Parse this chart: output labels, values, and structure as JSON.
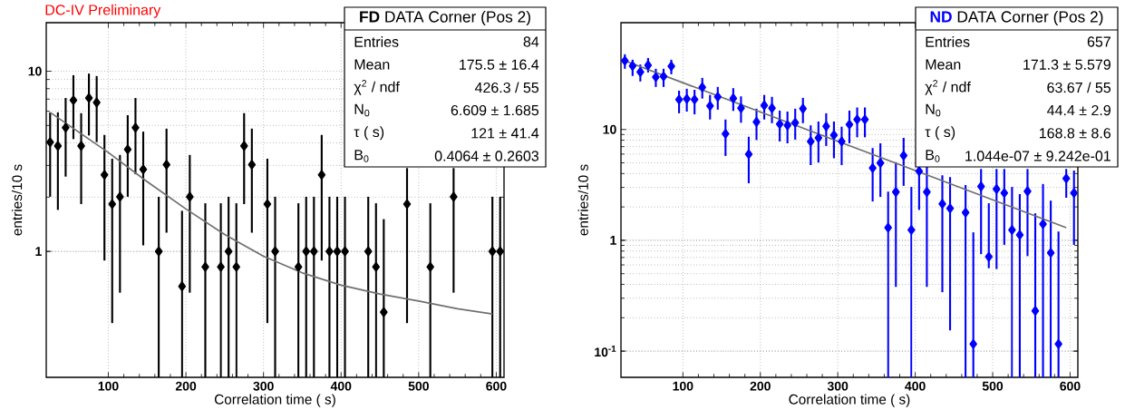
{
  "chart_data": [
    {
      "type": "scatter",
      "title": "DC-IV Preliminary",
      "xlabel": "Correlation time  (  s)",
      "ylabel": "entries/10  s",
      "x": [
        25,
        35,
        45,
        55,
        65,
        75,
        85,
        95,
        105,
        115,
        125,
        135,
        145,
        155,
        165,
        175,
        185,
        195,
        205,
        215,
        225,
        235,
        245,
        255,
        265,
        275,
        285,
        295,
        305,
        315,
        325,
        335,
        345,
        355,
        365,
        375,
        385,
        395,
        405,
        415,
        425,
        435,
        445,
        455,
        465,
        475,
        485,
        495,
        505,
        515,
        525,
        535,
        545,
        555,
        565,
        575,
        585,
        595,
        605
      ],
      "series": [
        {
          "color": "#000000",
          "values": [
            4.04,
            3.85,
            4.86,
            6.9,
            3.85,
            7.1,
            6.7,
            2.66,
            1.83,
            2.01,
            3.68,
            4.86,
            2.85,
            null,
            1,
            3.03,
            null,
            0.64,
            2.01,
            null,
            0.82,
            null,
            0.82,
            1,
            0.82,
            3.85,
            3.03,
            null,
            1.83,
            1,
            null,
            null,
            0.82,
            1,
            1,
            2.66,
            1,
            1,
            1,
            null,
            null,
            1,
            0.82,
            0.46,
            null,
            null,
            1.83,
            null,
            null,
            0.82,
            null,
            null,
            2.01,
            null,
            null,
            null,
            null,
            1,
            1
          ],
          "errors": [
            [
              2.01,
              5.91
            ],
            [
              1.7,
              5.91
            ],
            [
              2.6,
              7.1
            ],
            [
              4.2,
              9.5
            ],
            [
              1.83,
              5.85
            ],
            [
              4.4,
              9.7
            ],
            [
              4.04,
              9.4
            ],
            [
              0.89,
              4.43
            ],
            [
              0.4,
              3.27
            ],
            [
              0.59,
              3.43
            ],
            [
              2.01,
              5.7
            ],
            [
              2.68,
              7.1
            ],
            [
              1.08,
              4.62
            ],
            null,
            [
              0.2,
              2.01
            ],
            [
              1.27,
              4.8
            ],
            null,
            [
              0.2,
              1.68
            ],
            [
              0.59,
              3.43
            ],
            null,
            [
              0.2,
              1.85
            ],
            null,
            [
              0.2,
              1.85
            ],
            [
              0.2,
              2.01
            ],
            [
              0.2,
              1.85
            ],
            [
              1.83,
              5.85
            ],
            [
              1.27,
              4.8
            ],
            null,
            [
              0.4,
              3.27
            ],
            [
              0.2,
              2.01
            ],
            null,
            null,
            [
              0.2,
              1.85
            ],
            [
              0.2,
              2.01
            ],
            [
              0.2,
              2.01
            ],
            [
              0.89,
              4.43
            ],
            [
              0.2,
              2.01
            ],
            [
              0.2,
              2.01
            ],
            [
              0.2,
              2.01
            ],
            null,
            null,
            [
              0.2,
              2.01
            ],
            [
              0.2,
              1.85
            ],
            [
              0.2,
              1.51
            ],
            null,
            null,
            [
              0.4,
              2.9
            ],
            null,
            null,
            [
              0.2,
              1.85
            ],
            null,
            null,
            [
              0.59,
              2.9
            ],
            null,
            null,
            null,
            null,
            [
              0.2,
              2.01
            ],
            [
              0.2,
              2.01
            ]
          ]
        },
        {
          "type": "line",
          "color": "#707070",
          "marker": "none",
          "x": [
            25,
            100,
            150,
            200,
            250,
            300,
            350,
            400,
            450,
            500,
            550,
            595
          ],
          "values": [
            5.91,
            3.54,
            2.44,
            1.72,
            1.24,
            0.94,
            0.76,
            0.65,
            0.58,
            0.53,
            0.48,
            0.45
          ]
        }
      ],
      "xlim": [
        20,
        610
      ],
      "ylim": [
        0.2,
        18.6
      ],
      "xticks": [
        100,
        200,
        300,
        400,
        500,
        600
      ],
      "yticks": [
        1,
        10
      ],
      "log": "y",
      "grid": true,
      "marker": "diamond",
      "annotations": [
        "FD",
        "DATA Corner (Pos 2)",
        "Entries",
        "84",
        "Mean",
        "175.5 ± 16.4",
        "χ$^{2}$ / ndf",
        "426.3 / 55",
        "N$_{0}$",
        "6.609 ± 1.685",
        "τ  (  s)",
        "121 ± 41.4",
        "B$_{0}$",
        "0.4064 ± 0.2603"
      ]
    },
    {
      "type": "scatter",
      "xlabel": "Correlation time  (  s)",
      "ylabel": "entries/10  s",
      "x": [
        25,
        35,
        45,
        55,
        65,
        75,
        85,
        95,
        105,
        115,
        125,
        135,
        145,
        155,
        165,
        175,
        185,
        195,
        205,
        215,
        225,
        235,
        245,
        255,
        265,
        275,
        285,
        295,
        305,
        315,
        325,
        335,
        345,
        355,
        365,
        375,
        385,
        395,
        405,
        415,
        425,
        435,
        445,
        455,
        465,
        475,
        485,
        495,
        505,
        515,
        525,
        535,
        545,
        555,
        565,
        575,
        585,
        595,
        605
      ],
      "series": [
        {
          "color": "#0000ff",
          "values": [
            41.7,
            37.5,
            33.0,
            38.0,
            29.7,
            30.1,
            37.2,
            18.6,
            18.9,
            18.6,
            24.0,
            16.3,
            19.7,
            9.14,
            19.1,
            15.6,
            5.98,
            11.7,
            16.5,
            15.6,
            11.2,
            10.9,
            11.5,
            15.4,
            7.8,
            8.4,
            10.7,
            8.9,
            7.8,
            11.1,
            12.3,
            12.3,
            4.49,
            4.99,
            1.3,
            2.73,
            5.81,
            1.24,
            4.2,
            2.73,
            null,
            2.13,
            1.94,
            null,
            1.78,
            0.116,
            3.06,
            0.71,
            2.9,
            2.67,
            1.24,
            1.12,
            2.77,
            0.231,
            1.4,
            0.77,
            0.116,
            3.61,
            2.67
          ],
          "errors": [
            [
              35.3,
              47.7
            ],
            [
              30.4,
              42.6
            ],
            [
              27.1,
              38.6
            ],
            [
              32.7,
              44.2
            ],
            [
              24.2,
              35.3
            ],
            [
              24.2,
              35.3
            ],
            [
              31.5,
              42.6
            ],
            [
              14.0,
              22.4
            ],
            [
              14.5,
              23.3
            ],
            [
              13.7,
              22.8
            ],
            [
              19.0,
              29.2
            ],
            [
              12.3,
              20.5
            ],
            [
              15.1,
              24.2
            ],
            [
              5.77,
              12.3
            ],
            [
              14.7,
              23.6
            ],
            [
              11.5,
              19.9
            ],
            [
              3.27,
              8.6
            ],
            [
              8.03,
              15.4
            ],
            [
              12.3,
              20.5
            ],
            [
              11.4,
              19.7
            ],
            [
              7.8,
              14.8
            ],
            [
              7.5,
              14.5
            ],
            [
              8.1,
              15.4
            ],
            [
              11.4,
              19.3
            ],
            [
              4.77,
              10.9
            ],
            [
              5.03,
              11.8
            ],
            [
              7.1,
              14.0
            ],
            [
              5.5,
              11.8
            ],
            [
              4.77,
              10.6
            ],
            [
              7.5,
              14.8
            ],
            [
              8.5,
              15.8
            ],
            [
              8.5,
              15.8
            ],
            [
              2.24,
              6.8
            ],
            [
              2.46,
              7.5
            ],
            [
              0.058,
              2.75
            ],
            [
              0.38,
              5.07
            ],
            [
              3.1,
              8.4
            ],
            [
              0.058,
              3.03
            ],
            [
              1.88,
              6.2
            ],
            [
              0.38,
              5.03
            ],
            null,
            [
              0.34,
              3.86
            ],
            [
              0.154,
              3.72
            ],
            null,
            [
              0.058,
              3.15
            ],
            [
              0.058,
              1.18
            ],
            [
              0.75,
              4.4
            ],
            [
              0.56,
              2.16
            ],
            [
              0.55,
              4.4
            ],
            [
              0.91,
              4.4
            ],
            [
              0.058,
              3.03
            ],
            [
              0.058,
              2.61
            ],
            [
              0.72,
              4.4
            ],
            [
              0.058,
              1.75
            ],
            [
              0.058,
              3.22
            ],
            [
              0.058,
              2.28
            ],
            [
              0.058,
              1.2
            ],
            [
              2.42,
              4.4
            ],
            [
              0.91,
              4.26
            ]
          ]
        },
        {
          "type": "line",
          "color": "#707070",
          "marker": "none",
          "x": [
            25,
            300,
            595
          ],
          "values": [
            41.7,
            7.83,
            1.3
          ]
        }
      ],
      "xlim": [
        20,
        610
      ],
      "ylim": [
        0.058,
        92
      ],
      "xticks": [
        100,
        200,
        300,
        400,
        500,
        600
      ],
      "yticks": [
        {
          "value": 0.1,
          "label": "10$^{-1}$"
        },
        1,
        10
      ],
      "log": "y",
      "grid": true,
      "marker": "diamond",
      "annotations": [
        "ND",
        "DATA Corner (Pos 2)",
        "Entries",
        "657",
        "Mean",
        "171.3 ± 5.579",
        "χ$^{2}$ / ndf",
        "63.67 / 55",
        "N$_{0}$",
        "44.4 ± 2.9",
        "τ  (  s)",
        "168.8 ± 8.6",
        "B$_{0}$",
        "1.044e-07 ± 9.242e-01"
      ]
    }
  ]
}
